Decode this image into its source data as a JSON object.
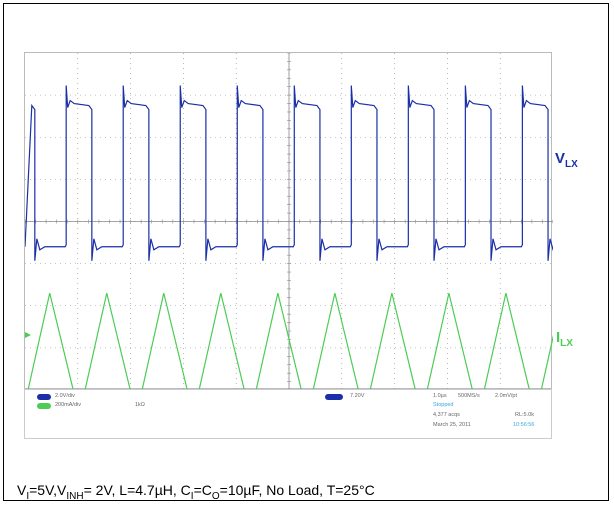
{
  "chart_data": {
    "type": "line",
    "title": "",
    "xlabel": "",
    "ylabel": "",
    "grid": true,
    "grid_divisions": {
      "x": 10,
      "y": 8
    },
    "series": [
      {
        "name": "VLX",
        "color": "#1a2fa8",
        "label": {
          "main": "V",
          "sub": "LX"
        },
        "period_div": 1.08,
        "phase_div": 0.3,
        "high_div": 6.8,
        "low_div": 3.4,
        "high_fraction": 0.45
      },
      {
        "name": "ILX",
        "color": "#4ccc55",
        "label": {
          "main": "I",
          "sub": "LX"
        },
        "period_div": 1.08,
        "phase_div": 0.05,
        "max_div": 2.3,
        "min_div": -0.6
      }
    ]
  },
  "status_bar": {
    "ch1_scale": "2.0V/div",
    "ch2_scale": "200mA/div",
    "ch2_info": "1kΩ",
    "trigger": "7.20V",
    "timebase": "1.0µs",
    "sample_rate": "500MS/s",
    "record": "2.0mV/pt",
    "state": "Stopped",
    "acq_count": "4,377 acqs",
    "rl": "RL:5.0k",
    "date": "March 25, 2011",
    "time": "10:56:56"
  },
  "conditions": {
    "p1": "V",
    "s1": "I",
    "p2": "=5V,V",
    "s2": "INH",
    "p3": "= 2V, L=4.7µH, C",
    "s3": "I",
    "p4": "=C",
    "s4": "O",
    "p5": "=10µF, No Load, T=25°C"
  },
  "colors": {
    "ch1": "#1a2fa8",
    "ch2": "#4ccc55",
    "grid": "#8a8a8a"
  }
}
